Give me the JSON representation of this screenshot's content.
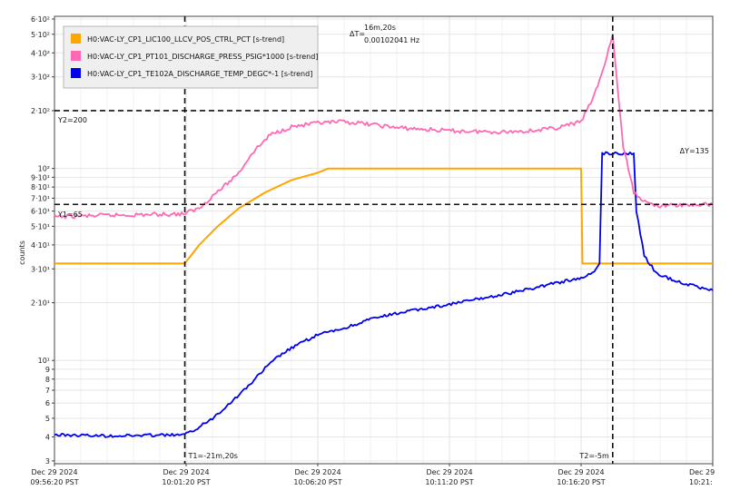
{
  "chart_data": {
    "type": "line",
    "ylabel": "counts",
    "y_scale": "log",
    "ylim": [
      2.9,
      620
    ],
    "x_unit": "minutes from 09:56:20 PST, Dec 29 2024",
    "xlim": [
      0,
      25
    ],
    "grid": true,
    "legend_position": "top-left",
    "y_tick_labels": [
      {
        "v": 600,
        "label": "6·10²"
      },
      {
        "v": 500,
        "label": "5·10²"
      },
      {
        "v": 400,
        "label": "4·10²"
      },
      {
        "v": 300,
        "label": "3·10²"
      },
      {
        "v": 200,
        "label": "2·10²"
      },
      {
        "v": 100,
        "label": "10²"
      },
      {
        "v": 90,
        "label": "9·10¹"
      },
      {
        "v": 80,
        "label": "8·10¹"
      },
      {
        "v": 70,
        "label": "7·10¹"
      },
      {
        "v": 60,
        "label": "6·10¹"
      },
      {
        "v": 50,
        "label": "5·10¹"
      },
      {
        "v": 40,
        "label": "4·10¹"
      },
      {
        "v": 30,
        "label": "3·10¹"
      },
      {
        "v": 20,
        "label": "2·10¹"
      },
      {
        "v": 10,
        "label": "10¹"
      },
      {
        "v": 9,
        "label": "9"
      },
      {
        "v": 8,
        "label": "8"
      },
      {
        "v": 7,
        "label": "7"
      },
      {
        "v": 6,
        "label": "6"
      },
      {
        "v": 5,
        "label": "5"
      },
      {
        "v": 4,
        "label": "4"
      },
      {
        "v": 3,
        "label": "3"
      }
    ],
    "x_ticks": [
      {
        "x": 0,
        "date": "Dec 29 2024",
        "time": "09:56:20 PST"
      },
      {
        "x": 5,
        "date": "Dec 29 2024",
        "time": "10:01:20 PST"
      },
      {
        "x": 10,
        "date": "Dec 29 2024",
        "time": "10:06:20 PST"
      },
      {
        "x": 15,
        "date": "Dec 29 2024",
        "time": "10:11:20 PST"
      },
      {
        "x": 20,
        "date": "Dec 29 2024",
        "time": "10:16:20 PST"
      },
      {
        "x": 25,
        "date": "Dec 29",
        "time": "10:21:"
      }
    ],
    "series": [
      {
        "name": "H0:VAC-LY_CP1_LIC100_LLCV_POS_CTRL_PCT [s-trend]",
        "color": "#FFA500",
        "points": [
          [
            0,
            32
          ],
          [
            4.95,
            32
          ],
          [
            5.5,
            40
          ],
          [
            6.2,
            50
          ],
          [
            7,
            62
          ],
          [
            8,
            75
          ],
          [
            9,
            87
          ],
          [
            10,
            95
          ],
          [
            10.4,
            100
          ],
          [
            16,
            100
          ],
          [
            20,
            100
          ],
          [
            20.05,
            32
          ],
          [
            25,
            32
          ]
        ]
      },
      {
        "name": "H0:VAC-LY_CP1_PT101_DISCHARGE_PRESS_PSIG*1000 [s-trend]",
        "color": "#FF69B4",
        "points": [
          [
            0,
            56
          ],
          [
            2,
            57
          ],
          [
            4.9,
            58
          ],
          [
            5.5,
            62
          ],
          [
            6,
            72
          ],
          [
            6.5,
            82
          ],
          [
            7,
            95
          ],
          [
            7.5,
            120
          ],
          [
            8.2,
            150
          ],
          [
            9,
            165
          ],
          [
            10,
            172
          ],
          [
            11,
            175
          ],
          [
            12,
            170
          ],
          [
            13,
            163
          ],
          [
            14,
            160
          ],
          [
            15,
            157
          ],
          [
            16,
            156
          ],
          [
            17,
            155
          ],
          [
            18,
            157
          ],
          [
            19,
            162
          ],
          [
            20,
            175
          ],
          [
            20.5,
            240
          ],
          [
            20.9,
            350
          ],
          [
            21.2,
            500
          ],
          [
            21.4,
            250
          ],
          [
            21.6,
            130
          ],
          [
            22,
            75
          ],
          [
            22.5,
            66
          ],
          [
            23,
            64
          ],
          [
            25,
            65
          ]
        ]
      },
      {
        "name": "H0:VAC-LY_CP1_TE102A_DISCHARGE_TEMP_DEGC*-1 [s-trend]",
        "color": "#0000EE",
        "points": [
          [
            0,
            4.1
          ],
          [
            2,
            4.05
          ],
          [
            4.95,
            4.1
          ],
          [
            5.5,
            4.5
          ],
          [
            6,
            5
          ],
          [
            7,
            6.6
          ],
          [
            7.5,
            7.7
          ],
          [
            8,
            9.1
          ],
          [
            8.5,
            10.5
          ],
          [
            9,
            11.6
          ],
          [
            9.5,
            12.6
          ],
          [
            10,
            13.6
          ],
          [
            11,
            14.7
          ],
          [
            12,
            16.4
          ],
          [
            13,
            17.6
          ],
          [
            14,
            18.6
          ],
          [
            15,
            19.6
          ],
          [
            16,
            20.8
          ],
          [
            17,
            22
          ],
          [
            18,
            23.5
          ],
          [
            19,
            25.3
          ],
          [
            20,
            26.8
          ],
          [
            20.5,
            29
          ],
          [
            20.7,
            32
          ],
          [
            20.8,
            120
          ],
          [
            22,
            120
          ],
          [
            22.1,
            60
          ],
          [
            22.4,
            35
          ],
          [
            22.9,
            28
          ],
          [
            24,
            25
          ],
          [
            25,
            23.2
          ]
        ]
      }
    ],
    "annotations": {
      "y1_label": "Y1=65",
      "y1_value": 65,
      "y2_label": "Y2=200",
      "y2_value": 200,
      "dy_label": "ΔY=135",
      "t1_label": "T1=-21m,20s",
      "t1_x": 4.95,
      "t2_label": "T2=-5m",
      "t2_x": 21.2,
      "dt_prefix": "ΔT=",
      "dt_value": "16m,20s",
      "dt_freq": "0.00102041 Hz"
    }
  }
}
